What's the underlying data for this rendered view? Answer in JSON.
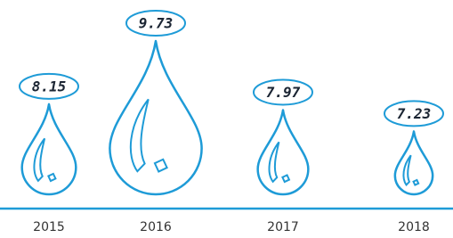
{
  "chart_data": {
    "type": "pictogram",
    "categories": [
      "2015",
      "2016",
      "2017",
      "2018"
    ],
    "values": [
      8.15,
      9.73,
      7.97,
      7.23
    ],
    "color": "#1e9bd7"
  }
}
